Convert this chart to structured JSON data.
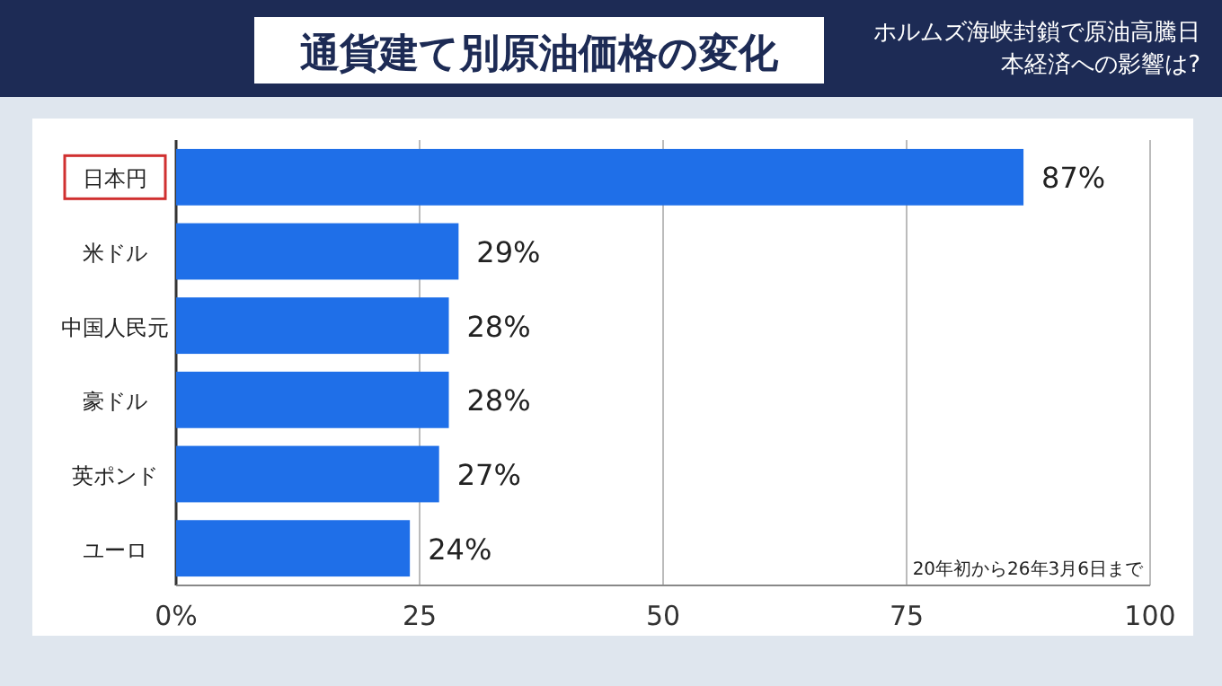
{
  "chart_data": {
    "type": "bar",
    "orientation": "horizontal",
    "title": "通貨建て別原油価格の変化",
    "subtitle": "ホルムズ海峡封鎖で原油高騰日本経済への影響は?",
    "categories": [
      "日本円",
      "米ドル",
      "中国人民元",
      "豪ドル",
      "英ポンド",
      "ユーロ"
    ],
    "values": [
      87,
      29,
      28,
      28,
      27,
      24
    ],
    "value_labels": [
      "87%",
      "29%",
      "28%",
      "28%",
      "27%",
      "24%"
    ],
    "color": "#1f6fe8",
    "xlim": [
      0,
      100
    ],
    "xticks": [
      {
        "value": 0,
        "label": "0%"
      },
      25,
      50,
      75,
      100
    ],
    "grid": "x",
    "annotations": [
      "20年初から26年3月6日まで"
    ]
  }
}
